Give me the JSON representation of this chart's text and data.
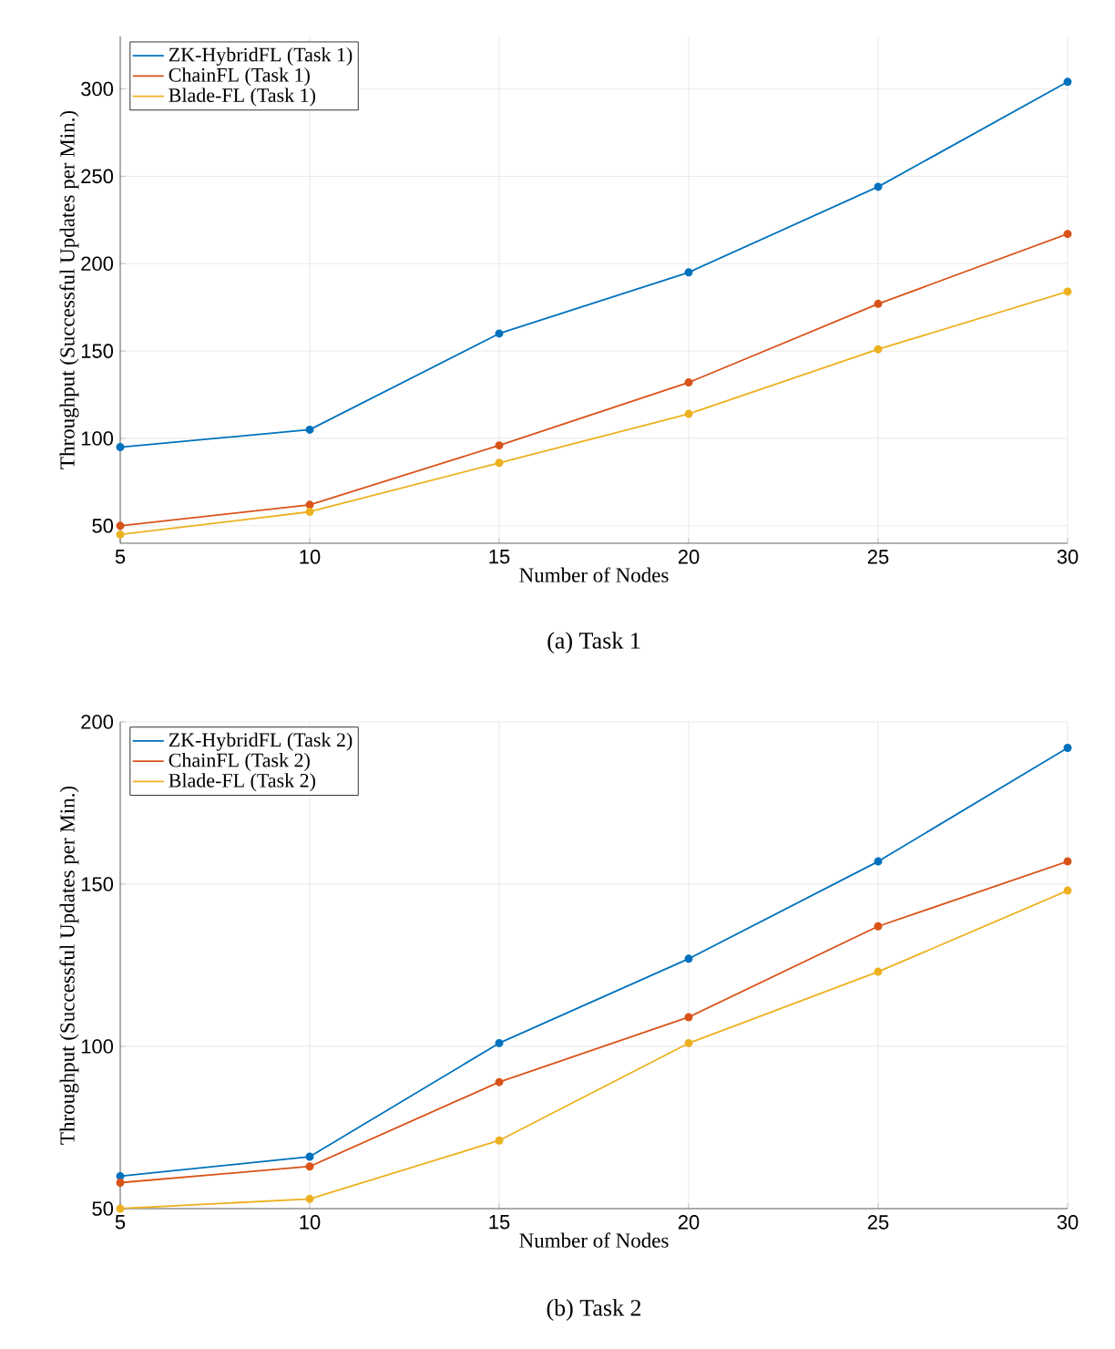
{
  "chart_data": [
    {
      "type": "line",
      "xlabel": "Number of Nodes",
      "ylabel": "Throughput (Successful Updates per Min.)",
      "x": [
        5,
        10,
        15,
        20,
        25,
        30
      ],
      "xlim": [
        5,
        30
      ],
      "xticks": [
        5,
        10,
        15,
        20,
        25,
        30
      ],
      "ylim": [
        40,
        330
      ],
      "yticks": [
        50,
        100,
        150,
        200,
        250,
        300
      ],
      "grid": true,
      "legend": "top left",
      "marker": "circle",
      "line_style": "solid",
      "annotations": [
        "(a) Task 1"
      ],
      "series": [
        {
          "name": "ZK-HybridFL (Task 1)",
          "color": "#0072bd",
          "values": [
            95,
            105,
            160,
            195,
            244,
            304
          ]
        },
        {
          "name": "ChainFL (Task 1)",
          "color": "#d95319",
          "values": [
            50,
            62,
            96,
            132,
            177,
            217
          ]
        },
        {
          "name": "Blade-FL (Task 1)",
          "color": "#edb120",
          "values": [
            45,
            58,
            86,
            114,
            151,
            184
          ]
        }
      ]
    },
    {
      "type": "line",
      "xlabel": "Number of Nodes",
      "ylabel": "Throughput (Successful Updates per Min.)",
      "x": [
        5,
        10,
        15,
        20,
        25,
        30
      ],
      "xlim": [
        5,
        30
      ],
      "xticks": [
        5,
        10,
        15,
        20,
        25,
        30
      ],
      "ylim": [
        50,
        200
      ],
      "yticks": [
        50,
        100,
        150,
        200
      ],
      "grid": true,
      "legend": "top left",
      "marker": "circle",
      "line_style": "solid",
      "annotations": [
        "(b) Task 2"
      ],
      "series": [
        {
          "name": "ZK-HybridFL (Task 2)",
          "color": "#0072bd",
          "values": [
            60,
            66,
            101,
            127,
            157,
            192
          ]
        },
        {
          "name": "ChainFL (Task 2)",
          "color": "#d95319",
          "values": [
            58,
            63,
            89,
            109,
            137,
            157
          ]
        },
        {
          "name": "Blade-FL (Task 2)",
          "color": "#edb120",
          "values": [
            50,
            53,
            71,
            101,
            123,
            148
          ]
        }
      ]
    }
  ]
}
